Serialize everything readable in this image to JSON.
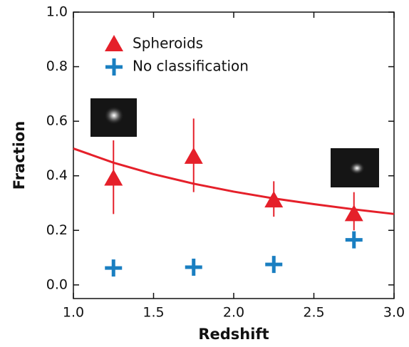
{
  "chart_data": {
    "type": "scatter",
    "x_label": "Redshift",
    "y_label": "Fraction",
    "x": [
      1.25,
      1.75,
      2.25,
      2.75
    ],
    "series": [
      {
        "name": "Spheroids",
        "color": "#e5202a",
        "marker": "triangle",
        "values": [
          0.39,
          0.47,
          0.31,
          0.26
        ],
        "yerr_minus": [
          0.13,
          0.13,
          0.06,
          0.06
        ],
        "yerr_plus": [
          0.14,
          0.14,
          0.07,
          0.08
        ]
      },
      {
        "name": "No classification",
        "color": "#1a7fc1",
        "marker": "plus",
        "values": [
          0.062,
          0.065,
          0.075,
          0.165
        ]
      }
    ],
    "fit": {
      "color": "#e5202a",
      "x": [
        1.0,
        1.25,
        1.5,
        1.75,
        2.0,
        2.25,
        2.5,
        2.75,
        3.0
      ],
      "y": [
        0.5,
        0.448,
        0.406,
        0.371,
        0.342,
        0.317,
        0.296,
        0.277,
        0.26
      ]
    },
    "xlim": [
      1.0,
      3.0
    ],
    "xticks": [
      {
        "value": 1.0,
        "label": "1.0"
      },
      {
        "value": 1.5,
        "label": "1.5"
      },
      {
        "value": 2.0,
        "label": "2.0"
      },
      {
        "value": 2.5,
        "label": "2.5"
      },
      {
        "value": 3.0,
        "label": "3.0"
      }
    ],
    "ylim": [
      -0.05,
      1.0
    ],
    "yticks": [
      {
        "value": 0.0,
        "label": "0.0"
      },
      {
        "value": 0.2,
        "label": "0.2"
      },
      {
        "value": 0.4,
        "label": "0.4"
      },
      {
        "value": 0.6,
        "label": "0.6"
      },
      {
        "value": 0.8,
        "label": "0.8"
      },
      {
        "value": 1.0,
        "label": "1.0"
      }
    ],
    "grid": false
  }
}
